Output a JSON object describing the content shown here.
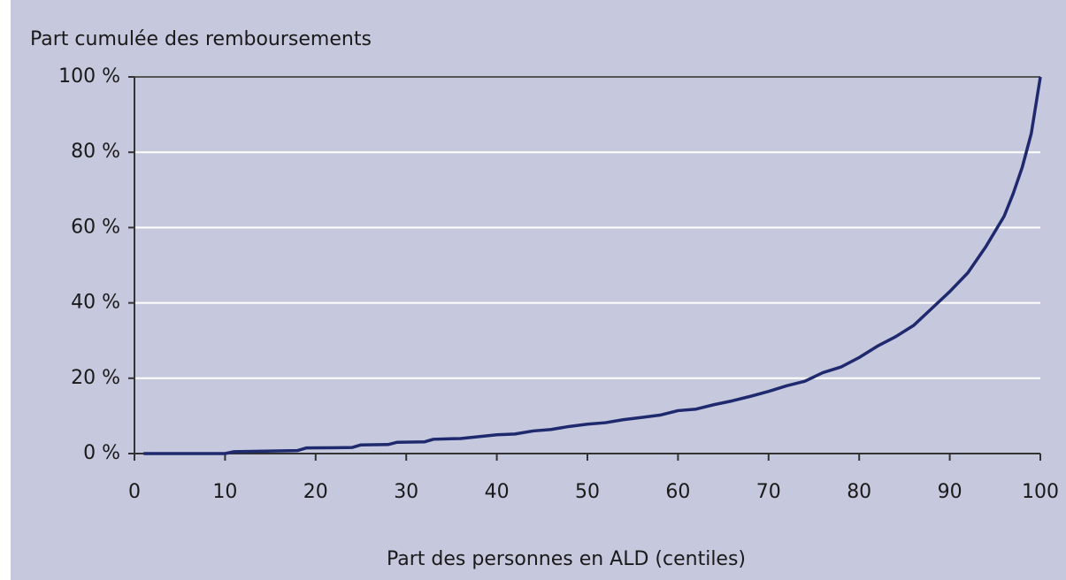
{
  "chart_data": {
    "type": "line",
    "title": "Part cumulée des remboursements",
    "x_label": "Part des personnes en ALD (centiles)",
    "x": [
      1,
      5,
      10,
      11,
      18,
      19,
      24,
      25,
      28,
      29,
      32,
      33,
      36,
      38,
      40,
      42,
      44,
      46,
      48,
      50,
      52,
      54,
      56,
      58,
      60,
      62,
      64,
      66,
      68,
      70,
      72,
      74,
      76,
      78,
      80,
      82,
      84,
      86,
      88,
      90,
      92,
      94,
      96,
      97,
      98,
      99,
      100
    ],
    "series": [
      {
        "color": "#1f2a6e",
        "values": [
          0,
          0,
          0,
          0.5,
          0.8,
          1.5,
          1.6,
          2.3,
          2.4,
          3,
          3.1,
          3.8,
          4,
          4.5,
          5,
          5.2,
          6,
          6.4,
          7.2,
          7.8,
          8.2,
          9,
          9.6,
          10.2,
          11.4,
          11.8,
          13,
          14,
          15.2,
          16.5,
          18,
          19.2,
          21.5,
          23,
          25.5,
          28.5,
          31,
          34,
          38.5,
          43,
          48,
          55,
          63,
          69,
          76,
          85,
          100
        ]
      }
    ],
    "xlim": [
      0,
      100
    ],
    "xticks": [
      0,
      10,
      20,
      30,
      40,
      50,
      60,
      70,
      80,
      90,
      100
    ],
    "ylim": [
      0,
      100
    ],
    "yticks": [
      {
        "value": 0,
        "label": "0 %"
      },
      {
        "value": 20,
        "label": "20 %"
      },
      {
        "value": 40,
        "label": "40 %"
      },
      {
        "value": 60,
        "label": "60 %"
      },
      {
        "value": 80,
        "label": "80 %"
      },
      {
        "value": 100,
        "label": "100 %"
      }
    ],
    "grid": true
  }
}
